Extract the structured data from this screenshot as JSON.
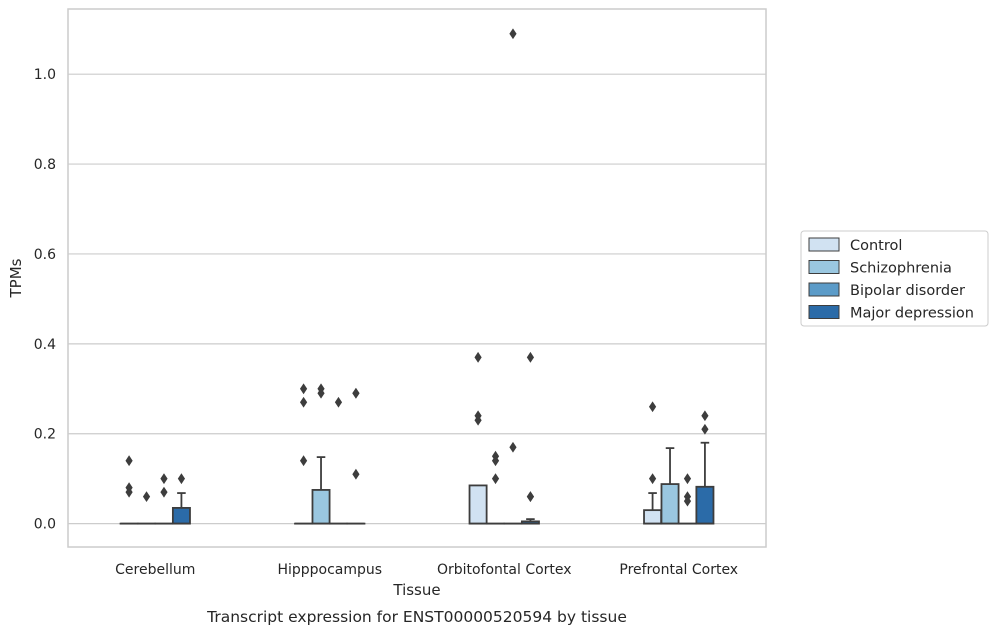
{
  "caption": "Transcript expression for ENST00000520594 by tissue",
  "chart_data": {
    "type": "boxplot",
    "xlabel": "Tissue",
    "ylabel": "TPMs",
    "ylim": [
      -0.052,
      1.145
    ],
    "yticks": [
      0.0,
      0.2,
      0.4,
      0.6,
      0.8,
      1.0
    ],
    "ytick_labels": [
      "0.0",
      "0.2",
      "0.4",
      "0.6",
      "0.8",
      "1.0"
    ],
    "grid": "horizontal",
    "legend_position": "right",
    "categories": [
      "Cerebellum",
      "Hipppocampus",
      "Orbitofontal Cortex",
      "Prefrontal Cortex"
    ],
    "series": [
      {
        "name": "Control",
        "color": "#d1e2f2",
        "boxes": [
          {
            "q1": 0,
            "median": 0,
            "q3": 0,
            "whislo": 0,
            "whishi": 0,
            "fliers": [
              0.14,
              0.08,
              0.07
            ]
          },
          {
            "q1": 0,
            "median": 0,
            "q3": 0,
            "whislo": 0,
            "whishi": 0,
            "fliers": [
              0.3,
              0.27,
              0.14
            ]
          },
          {
            "q1": 0,
            "median": 0,
            "q3": 0.085,
            "whislo": 0,
            "whishi": 0.085,
            "fliers": [
              0.37,
              0.24,
              0.23
            ]
          },
          {
            "q1": 0,
            "median": 0,
            "q3": 0.03,
            "whislo": 0,
            "whishi": 0.068,
            "fliers": [
              0.26,
              0.1
            ]
          }
        ]
      },
      {
        "name": "Schizophrenia",
        "color": "#9ac7e0",
        "boxes": [
          {
            "q1": 0,
            "median": 0,
            "q3": 0,
            "whislo": 0,
            "whishi": 0,
            "fliers": [
              0.06
            ]
          },
          {
            "q1": 0,
            "median": 0,
            "q3": 0.075,
            "whislo": 0,
            "whishi": 0.148,
            "fliers": [
              0.3,
              0.29
            ]
          },
          {
            "q1": 0,
            "median": 0,
            "q3": 0,
            "whislo": 0,
            "whishi": 0,
            "fliers": [
              0.15,
              0.14,
              0.1
            ]
          },
          {
            "q1": 0,
            "median": 0,
            "q3": 0.088,
            "whislo": 0,
            "whishi": 0.168,
            "fliers": []
          }
        ]
      },
      {
        "name": "Bipolar disorder",
        "color": "#5b9bc8",
        "boxes": [
          {
            "q1": 0,
            "median": 0,
            "q3": 0,
            "whislo": 0,
            "whishi": 0,
            "fliers": [
              0.1,
              0.07
            ]
          },
          {
            "q1": 0,
            "median": 0,
            "q3": 0,
            "whislo": 0,
            "whishi": 0,
            "fliers": [
              0.27
            ]
          },
          {
            "q1": 0,
            "median": 0,
            "q3": 0,
            "whislo": 0,
            "whishi": 0,
            "fliers": [
              1.09,
              0.17
            ]
          },
          {
            "q1": 0,
            "median": 0,
            "q3": 0,
            "whislo": 0,
            "whishi": 0,
            "fliers": [
              0.1,
              0.06,
              0.05
            ]
          }
        ]
      },
      {
        "name": "Major depression",
        "color": "#2b6ba8",
        "boxes": [
          {
            "q1": 0,
            "median": 0,
            "q3": 0.035,
            "whislo": 0,
            "whishi": 0.068,
            "fliers": [
              0.1
            ]
          },
          {
            "q1": 0,
            "median": 0,
            "q3": 0,
            "whislo": 0,
            "whishi": 0,
            "fliers": [
              0.29,
              0.29,
              0.11
            ]
          },
          {
            "q1": 0,
            "median": 0,
            "q3": 0.005,
            "whislo": 0,
            "whishi": 0.01,
            "fliers": [
              0.37,
              0.06,
              0.06
            ]
          },
          {
            "q1": 0,
            "median": 0,
            "q3": 0.082,
            "whislo": 0,
            "whishi": 0.18,
            "fliers": [
              0.24,
              0.21
            ]
          }
        ]
      }
    ]
  }
}
